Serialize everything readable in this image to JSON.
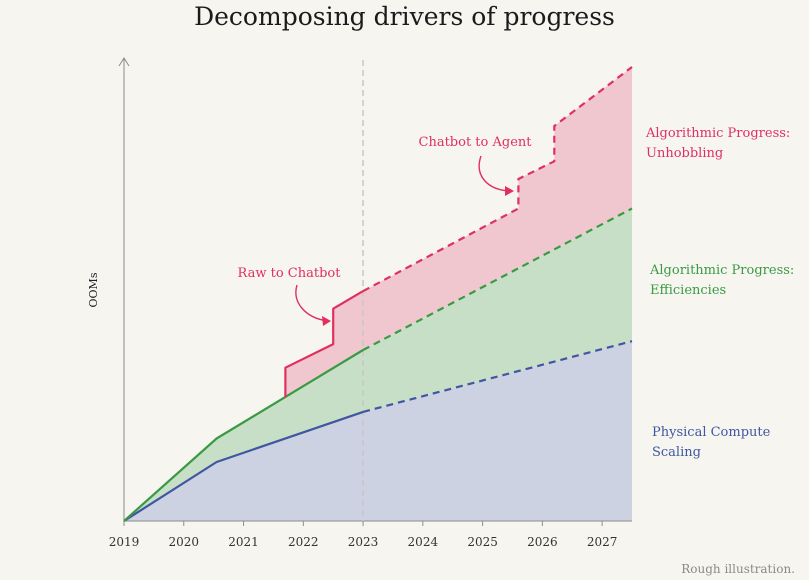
{
  "chart_data": {
    "type": "area",
    "title": "Decomposing drivers of progress",
    "ylabel": "OOMs",
    "xlabel": "",
    "footnote": "Rough illustration.",
    "x_ticks": [
      "2019",
      "2020",
      "2021",
      "2022",
      "2023",
      "2024",
      "2025",
      "2026",
      "2027"
    ],
    "xlim": [
      2019,
      2027.5
    ],
    "ylim": [
      0,
      7.7
    ],
    "projection_start": 2023,
    "series": [
      {
        "name": "Physical Compute Scaling",
        "label_lines": [
          "Physical Compute",
          "Scaling"
        ],
        "color": "#3f57a0",
        "fill": "#ccd2e2",
        "points": [
          [
            2019,
            0
          ],
          [
            2020.55,
            1.0
          ],
          [
            2023,
            1.85
          ],
          [
            2027.5,
            3.05
          ]
        ]
      },
      {
        "name": "Algorithmic Progress: Efficiencies",
        "label_lines": [
          "Algorithmic Progress:",
          "Efficiencies"
        ],
        "color": "#3a9a44",
        "fill": "#c8dfc7",
        "points": [
          [
            2019,
            0
          ],
          [
            2020.55,
            1.4
          ],
          [
            2023,
            2.9
          ],
          [
            2027.5,
            5.3
          ]
        ]
      },
      {
        "name": "Algorithmic Progress: Unhobbling",
        "label_lines": [
          "Algorithmic Progress:",
          "Unhobbling"
        ],
        "color": "#e0305e",
        "fill": "#f1c7cf",
        "points": [
          [
            2021.7,
            2.1
          ],
          [
            2021.7,
            2.6
          ],
          [
            2022.5,
            3.0
          ],
          [
            2022.5,
            3.6
          ],
          [
            2023,
            3.9
          ],
          [
            2025.6,
            5.3
          ],
          [
            2025.6,
            5.8
          ],
          [
            2026.2,
            6.1
          ],
          [
            2026.2,
            6.7
          ],
          [
            2027.5,
            7.7
          ]
        ]
      }
    ],
    "annotations": [
      {
        "text": "Raw to Chatbot",
        "color": "#e0305e"
      },
      {
        "text": "Chatbot to Agent",
        "color": "#e0305e"
      }
    ]
  }
}
